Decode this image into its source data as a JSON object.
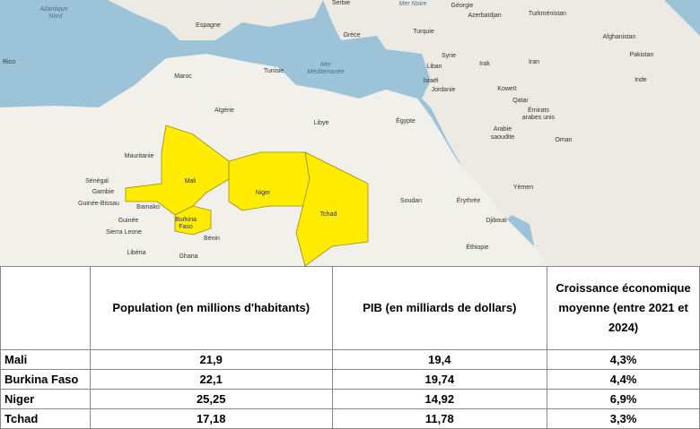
{
  "map": {
    "labels": [
      "Atlantique",
      "Nord",
      "Espagne",
      "Serbie",
      "Mer Noire",
      "Géorgie",
      "Azerbaïdjan",
      "Turkménistan",
      "Grèce",
      "Turquie",
      "Afghanistan",
      "Pakistan",
      "Syrie",
      "Irak",
      "Iran",
      "Liban",
      "Israël",
      "Jordanie",
      "Koweït",
      "Tunisie",
      "Mer",
      "Méditerranée",
      "Maroc",
      "Algérie",
      "Libye",
      "Égypte",
      "Arabie",
      "saoudite",
      "Qatar",
      "Émirats",
      "arabes unis",
      "Oman",
      "Inde",
      "Mauritanie",
      "Mali",
      "Niger",
      "Tchad",
      "Sénégal",
      "Gambie",
      "Guinée-Bissau",
      "Bamako",
      "Burkina",
      "Faso",
      "Guinée",
      "Sierra Leone",
      "Bénin",
      "Libéria",
      "Ghana",
      "Soudan",
      "Érythrée",
      "Yémen",
      "Djibouti",
      "Éthiopie",
      "Rico"
    ]
  },
  "table": {
    "header": [
      "Population (en millions d'habitants)",
      "PIB (en milliards de dollars)",
      "Croissance économique moyenne (entre 2021 et 2024)"
    ],
    "rows": [
      [
        "Mali",
        "21,9",
        "19,4",
        "4,3%"
      ],
      [
        "Burkina Faso",
        "22,1",
        "19,74",
        "4,4%"
      ],
      [
        "Niger",
        "25,25",
        "14,92",
        "6,9%"
      ],
      [
        "Tchad",
        "17,18",
        "11,78",
        "3,3%"
      ]
    ]
  }
}
